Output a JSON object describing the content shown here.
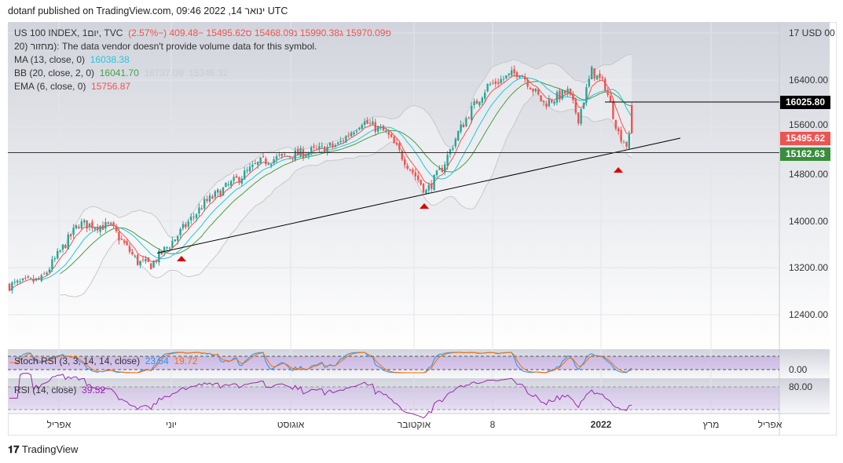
{
  "header": {
    "published": "dotanf published on TradingView.com, 09:46 2022 ,14 ינואר UTC"
  },
  "legend": {
    "symbol": "US 100 INDEX, 1יום, TVC",
    "o_label": "פ",
    "o": "15970.09",
    "h_label": "ג",
    "h": "15990.38",
    "l_label": "נ",
    "l": "15468.09",
    "c_label": "ס",
    "c": "15495.62",
    "change": "−409.48 (−2.57%)",
    "volume_note": "20) מחזור): The data vendor doesn't provide volume data for this symbol.",
    "ma_label": "MA (13, close, 0)",
    "ma_value": "16038.38",
    "bb_label": "BB (20, close, 2, 0)",
    "bb_basis": "16041.70",
    "bb_upper": "16737.09",
    "bb_lower": "15346.32",
    "ema_label": "EMA (6, close, 0)",
    "ema_value": "15756.87"
  },
  "price_axis": {
    "currency": "17 USD 00",
    "ticks": [
      "16400.00",
      "15600.00",
      "14800.00",
      "14000.00",
      "13200.00",
      "12400.00"
    ]
  },
  "price_tags": {
    "resistance": "16025.80",
    "last": "15495.62",
    "support": "15162.63"
  },
  "stoch": {
    "label": "Stoch RSI (3, 3, 14, 14, close)",
    "k": "23.54",
    "d": "19.72",
    "axis": "0.00"
  },
  "rsi": {
    "label": "RSI (14, close)",
    "value": "39.52",
    "axis": "80.00"
  },
  "time_axis": [
    "אפריל",
    "יוני",
    "אוגוסט",
    "אוקטובר",
    "8",
    "2022",
    "מרץ",
    "אפריל"
  ],
  "footer": {
    "brand": "TradingView"
  },
  "colors": {
    "up": "#26a69a",
    "down": "#ef5350",
    "ma": "#26c6da",
    "bb": "#43a047",
    "ema": "#ef5350"
  },
  "chart_data": {
    "type": "candlestick",
    "ylim": [
      12000,
      17300
    ],
    "path_keypoints": [
      [
        0,
        12900
      ],
      [
        12,
        13000
      ],
      [
        26,
        13950
      ],
      [
        38,
        13900
      ],
      [
        48,
        13300
      ],
      [
        53,
        13250
      ],
      [
        62,
        13700
      ],
      [
        73,
        14300
      ],
      [
        85,
        14700
      ],
      [
        94,
        15000
      ],
      [
        103,
        15100
      ],
      [
        115,
        15200
      ],
      [
        123,
        15300
      ],
      [
        132,
        15700
      ],
      [
        141,
        15500
      ],
      [
        147,
        15100
      ],
      [
        156,
        14500
      ],
      [
        162,
        14900
      ],
      [
        168,
        15500
      ],
      [
        173,
        15900
      ],
      [
        179,
        16300
      ],
      [
        191,
        16550
      ],
      [
        200,
        16000
      ],
      [
        209,
        16200
      ],
      [
        213,
        15750
      ],
      [
        218,
        16550
      ],
      [
        223,
        16300
      ],
      [
        228,
        15500
      ],
      [
        231,
        15300
      ],
      [
        233,
        15495
      ]
    ],
    "trendline": [
      13450,
      15500
    ],
    "horizontal_levels": [
      16025.8,
      15162.63
    ]
  }
}
